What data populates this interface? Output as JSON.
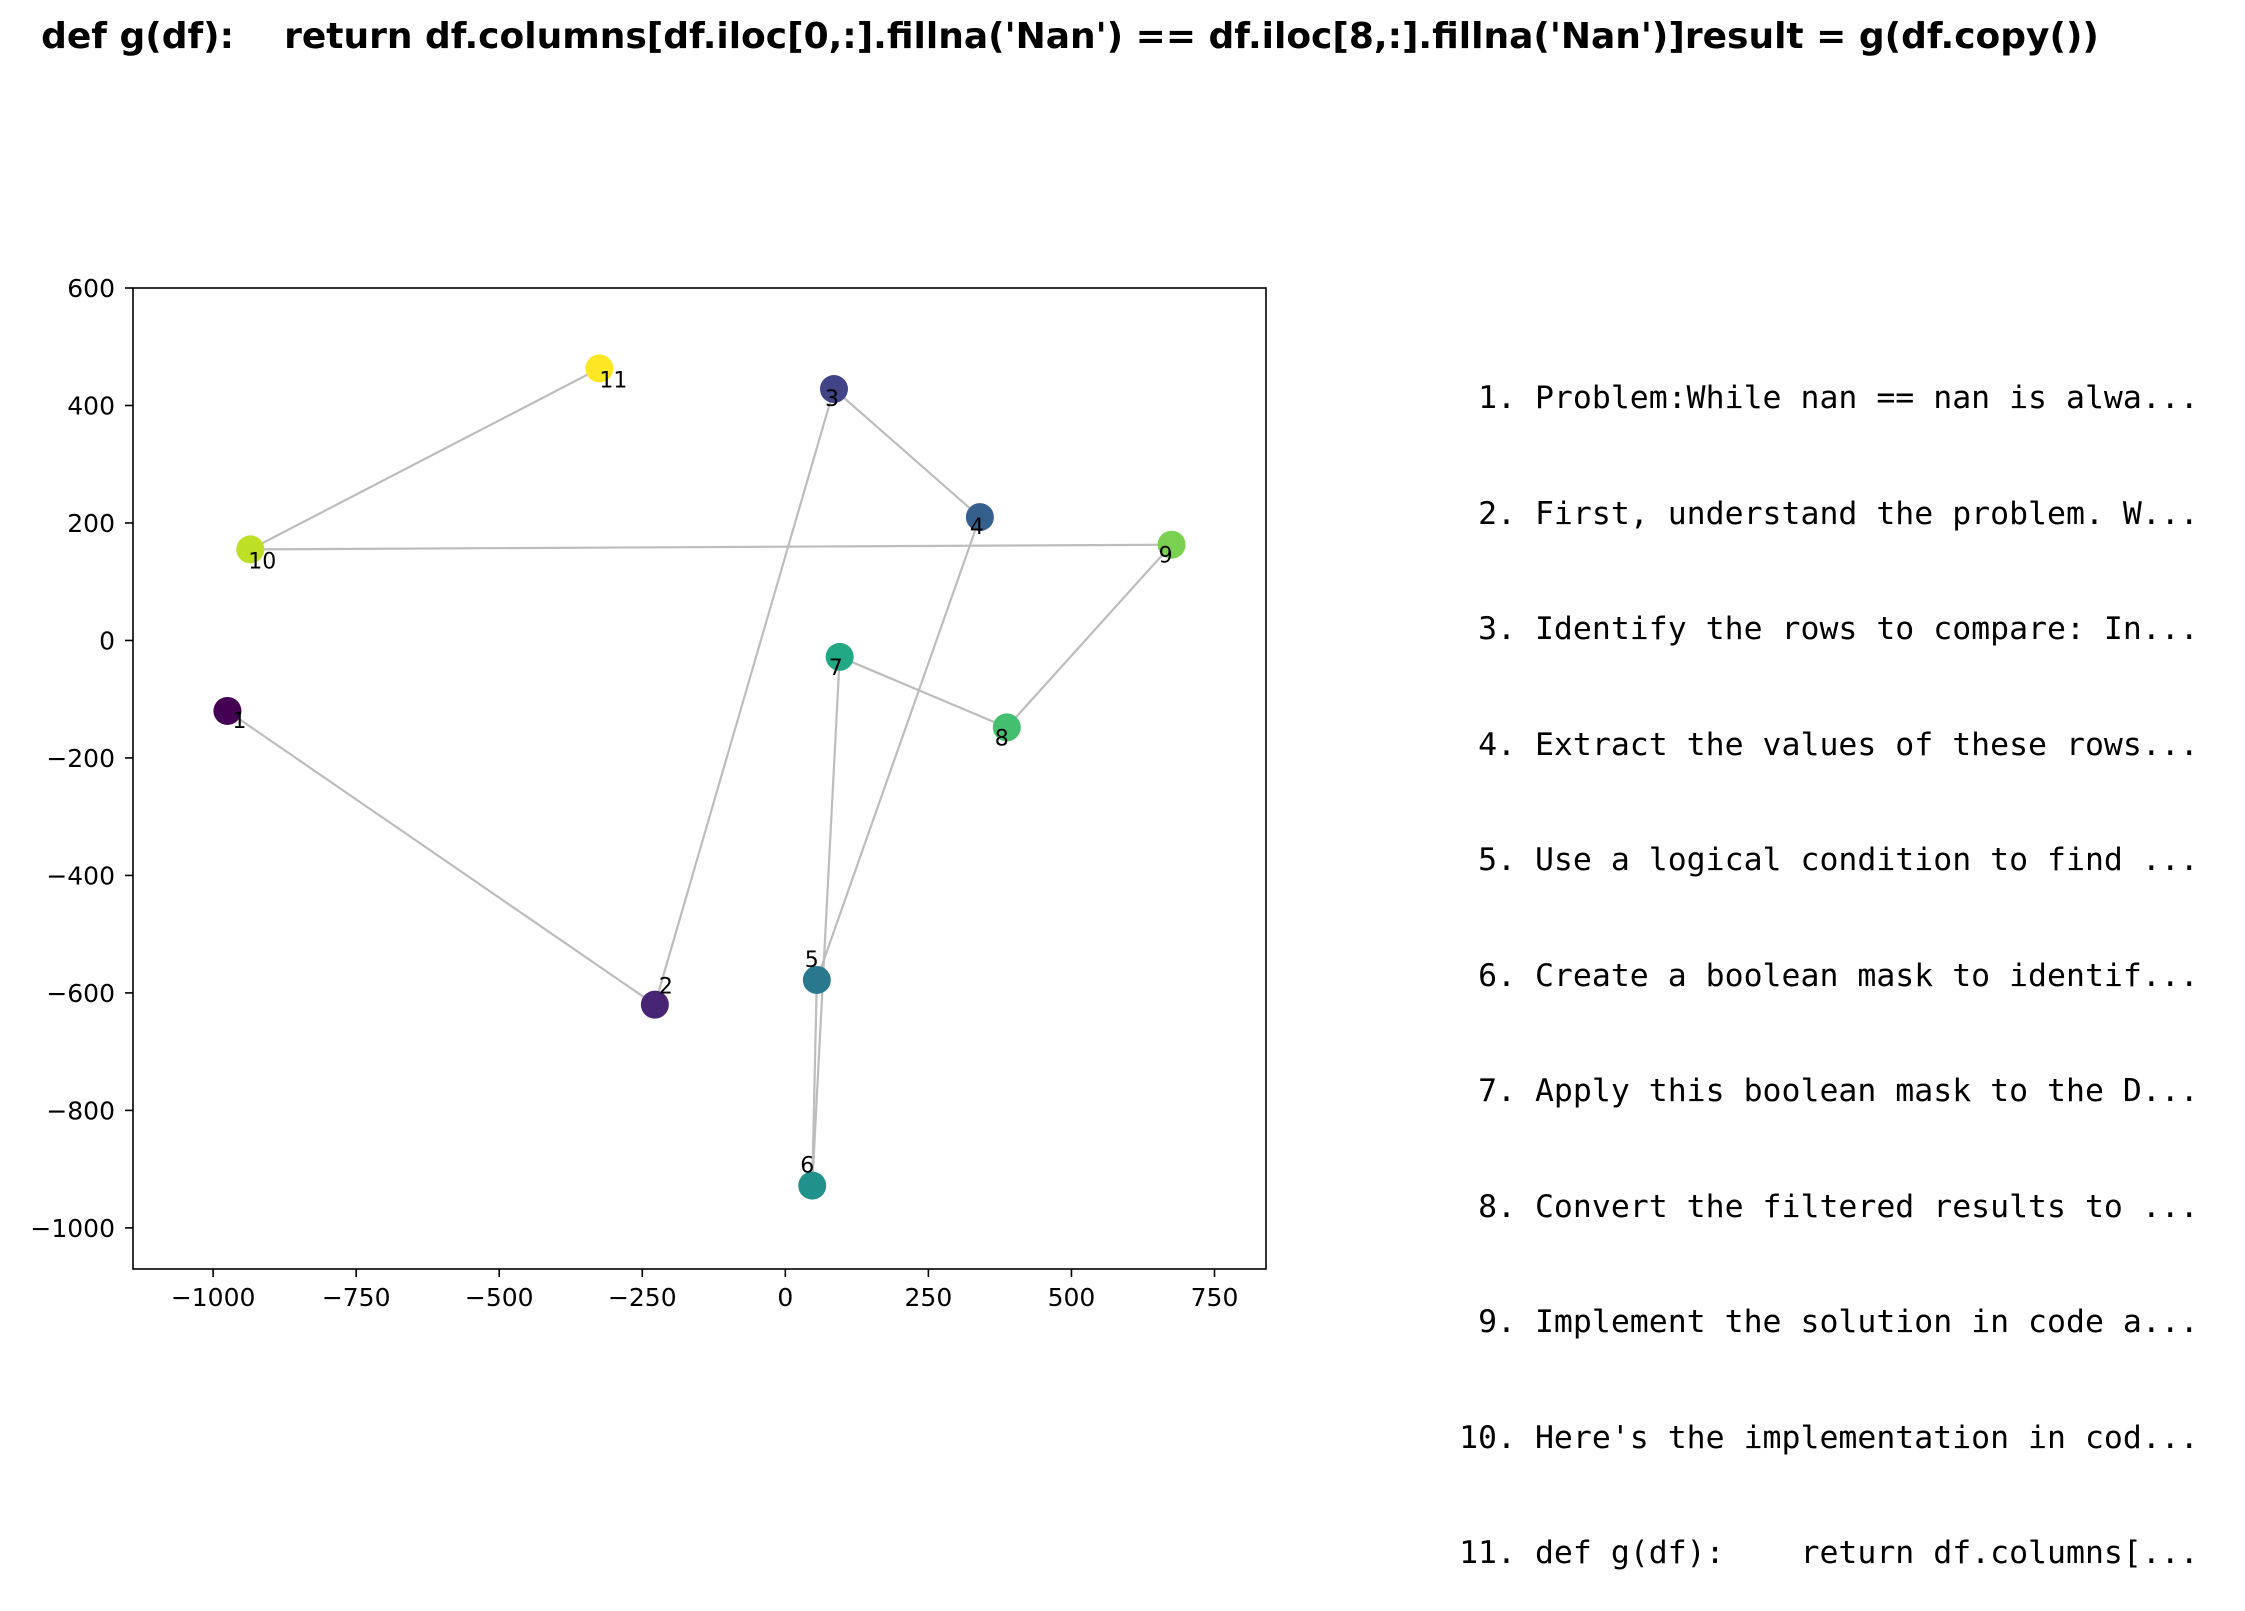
{
  "chart_data": {
    "type": "scatter",
    "title": "def g(df):    return df.columns[df.iloc[0,:].fillna('Nan') == df.iloc[8,:].fillna('Nan')]result = g(df.copy())",
    "xlabel": "",
    "ylabel": "",
    "xlim": [
      -1140,
      840
    ],
    "ylim": [
      -1070,
      600
    ],
    "xticks": [
      -1000,
      -750,
      -500,
      -250,
      0,
      250,
      500,
      750
    ],
    "yticks": [
      600,
      400,
      200,
      0,
      -200,
      -400,
      -600,
      -800,
      -1000
    ],
    "xtick_labels": [
      "−1000",
      "−750",
      "−500",
      "−250",
      "0",
      "250",
      "500",
      "750"
    ],
    "ytick_labels": [
      "600",
      "400",
      "200",
      "0",
      "−200",
      "−400",
      "−600",
      "−800",
      "−1000"
    ],
    "grid": false,
    "colormap": "viridis",
    "line_color": "#bdbdbd",
    "points": [
      {
        "label": "1",
        "x": -975,
        "y": -120,
        "color": "#440154"
      },
      {
        "label": "2",
        "x": -228,
        "y": -620,
        "color": "#482475"
      },
      {
        "label": "3",
        "x": 85,
        "y": 428,
        "color": "#414487"
      },
      {
        "label": "4",
        "x": 340,
        "y": 210,
        "color": "#355f8d"
      },
      {
        "label": "5",
        "x": 55,
        "y": -578,
        "color": "#2a788e"
      },
      {
        "label": "6",
        "x": 47,
        "y": -928,
        "color": "#21918c"
      },
      {
        "label": "7",
        "x": 95,
        "y": -28,
        "color": "#22a884"
      },
      {
        "label": "8",
        "x": 387,
        "y": -148,
        "color": "#44bf70"
      },
      {
        "label": "9",
        "x": 675,
        "y": 163,
        "color": "#7ad151"
      },
      {
        "label": "10",
        "x": -935,
        "y": 155,
        "color": "#bddf26"
      },
      {
        "label": "11",
        "x": -325,
        "y": 463,
        "color": "#fde725"
      }
    ]
  },
  "steps": [
    {
      "num": "1.",
      "text": "Problem:While nan == nan is alwa..."
    },
    {
      "num": "2.",
      "text": "First, understand the problem. W..."
    },
    {
      "num": "3.",
      "text": "Identify the rows to compare: In..."
    },
    {
      "num": "4.",
      "text": "Extract the values of these rows..."
    },
    {
      "num": "5.",
      "text": "Use a logical condition to find ..."
    },
    {
      "num": "6.",
      "text": "Create a boolean mask to identif..."
    },
    {
      "num": "7.",
      "text": "Apply this boolean mask to the D..."
    },
    {
      "num": "8.",
      "text": "Convert the filtered results to ..."
    },
    {
      "num": "9.",
      "text": "Implement the solution in code a..."
    },
    {
      "num": "10.",
      "text": "Here's the implementation in cod..."
    },
    {
      "num": "11.",
      "text": "def g(df):    return df.columns[..."
    }
  ]
}
